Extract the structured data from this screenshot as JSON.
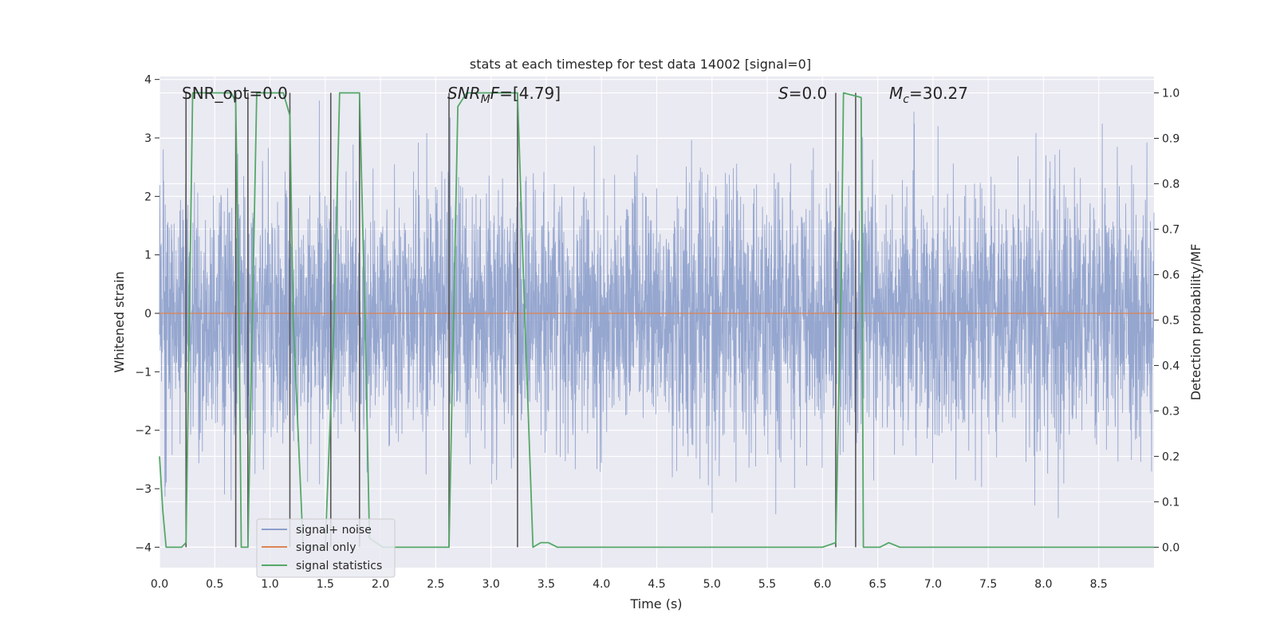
{
  "chart_data": {
    "type": "line",
    "title": "stats at each timestep for test data 14002 [signal=0]",
    "xlabel": "Time (s)",
    "ylabel_left": "Whitened strain",
    "ylabel_right": "Detection probability/MF",
    "xlim": [
      0.0,
      9.0
    ],
    "ylim_left": [
      -4.35,
      4.05
    ],
    "ylim_right": [
      -0.045,
      1.036
    ],
    "x_ticks": [
      0.0,
      0.5,
      1.0,
      1.5,
      2.0,
      2.5,
      3.0,
      3.5,
      4.0,
      4.5,
      5.0,
      5.5,
      6.0,
      6.5,
      7.0,
      7.5,
      8.0,
      8.5
    ],
    "x_tick_labels": [
      "0.0",
      "0.5",
      "1.0",
      "1.5",
      "2.0",
      "2.5",
      "3.0",
      "3.5",
      "4.0",
      "4.5",
      "5.0",
      "5.5",
      "6.0",
      "6.5",
      "7.0",
      "7.5",
      "8.0",
      "8.5"
    ],
    "y_left_ticks": [
      -4,
      -3,
      -2,
      -1,
      0,
      1,
      2,
      3,
      4
    ],
    "y_left_tick_labels": [
      "−4",
      "−3",
      "−2",
      "−1",
      "0",
      "1",
      "2",
      "3",
      "4"
    ],
    "y_right_ticks": [
      0.0,
      0.1,
      0.2,
      0.3,
      0.4,
      0.5,
      0.6,
      0.7,
      0.8,
      0.9,
      1.0
    ],
    "y_right_tick_labels": [
      "0.0",
      "0.1",
      "0.2",
      "0.3",
      "0.4",
      "0.5",
      "0.6",
      "0.7",
      "0.8",
      "0.9",
      "1.0"
    ],
    "grid": true,
    "legend_position": "lower-left",
    "colors": {
      "background": "#eaeaf2",
      "grid": "#ffffff",
      "noise": "#8c9fcb",
      "signal": "#dd8452",
      "stats": "#55a868",
      "vlines": "#555555",
      "text": "#262626"
    },
    "series": [
      {
        "name": "signal+ noise",
        "axis": "left",
        "style": "dense noise, amplitude approx ±1.7 with peaks to ±3.7",
        "description": "whitened strain noise sampled over 0–9 s"
      },
      {
        "name": "signal only",
        "axis": "left",
        "x": [
          0.0,
          9.0
        ],
        "y": [
          0.0,
          0.0
        ]
      },
      {
        "name": "signal statistics",
        "axis": "right",
        "x": [
          0.0,
          0.03,
          0.06,
          0.2,
          0.24,
          0.27,
          0.3,
          0.65,
          0.69,
          0.72,
          0.74,
          0.8,
          0.88,
          0.91,
          1.12,
          1.18,
          1.21,
          1.3,
          1.5,
          1.58,
          1.63,
          1.81,
          1.86,
          1.9,
          2.02,
          2.15,
          2.5,
          2.62,
          2.7,
          2.78,
          3.24,
          3.3,
          3.38,
          3.45,
          3.52,
          3.6,
          4.0,
          5.0,
          6.0,
          6.12,
          6.17,
          6.19,
          6.35,
          6.37,
          6.52,
          6.6,
          6.7,
          7.5,
          8.5,
          9.0
        ],
        "y": [
          0.2,
          0.08,
          0.0,
          0.0,
          0.01,
          0.5,
          1.0,
          1.0,
          0.98,
          0.5,
          0.0,
          0.0,
          1.0,
          1.0,
          1.0,
          0.95,
          0.5,
          0.0,
          0.0,
          0.5,
          1.0,
          1.0,
          0.5,
          0.02,
          0.0,
          0.0,
          0.0,
          0.0,
          0.97,
          1.0,
          1.0,
          0.55,
          0.0,
          0.01,
          0.01,
          0.0,
          0.0,
          0.0,
          0.0,
          0.01,
          0.6,
          1.0,
          0.99,
          0.0,
          0.0,
          0.01,
          0.0,
          0.0,
          0.0,
          0.0
        ]
      }
    ],
    "vlines_x": [
      0.24,
      0.69,
      0.8,
      1.18,
      1.55,
      1.81,
      2.62,
      3.24,
      6.12,
      6.3
    ],
    "legend": [
      "signal+ noise",
      "signal only",
      "signal statistics"
    ],
    "annotations": {
      "snr_opt": "SNR_opt=0.0",
      "snr_mf_base": "SNR",
      "snr_mf_sub": "M",
      "snr_mf_ital2": "F",
      "snr_mf_value": "=[4.79]",
      "s_label": "S",
      "s_value": "=0.0",
      "mc_label": "M",
      "mc_sub": "c",
      "mc_value": "=30.27"
    }
  }
}
